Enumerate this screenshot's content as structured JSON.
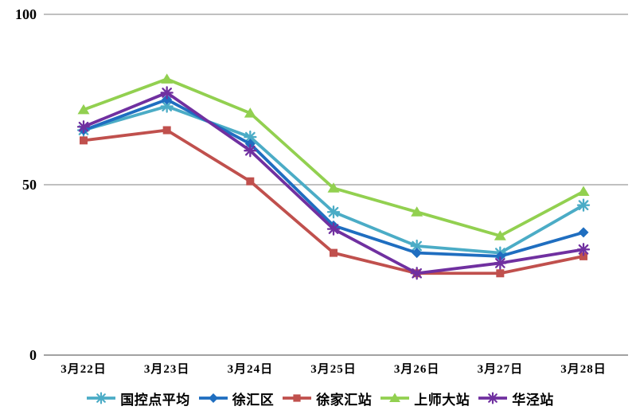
{
  "chart_data": {
    "type": "line",
    "title": "",
    "xlabel": "",
    "ylabel": "",
    "categories": [
      "3月22日",
      "3月23日",
      "3月24日",
      "3月25日",
      "3月26日",
      "3月27日",
      "3月28日"
    ],
    "series": [
      {
        "name": "国控点平均",
        "color": "#4BACC6",
        "marker": "star",
        "values": [
          66,
          73,
          64,
          42,
          32,
          30,
          44
        ]
      },
      {
        "name": "徐汇区",
        "color": "#1F6EC0",
        "marker": "diamond",
        "values": [
          66,
          75,
          62,
          38,
          30,
          29,
          36
        ]
      },
      {
        "name": "徐家汇站",
        "color": "#C0504D",
        "marker": "square",
        "values": [
          63,
          66,
          51,
          30,
          24,
          24,
          29
        ]
      },
      {
        "name": "上师大站",
        "color": "#92D050",
        "marker": "triangle",
        "values": [
          72,
          81,
          71,
          49,
          42,
          35,
          48
        ]
      },
      {
        "name": "华泾站",
        "color": "#7030A0",
        "marker": "star",
        "values": [
          67,
          77,
          60,
          37,
          24,
          27,
          31
        ]
      }
    ],
    "ylim": [
      0,
      100
    ],
    "yticks": [
      0,
      50,
      100
    ],
    "ytick_labels": [
      "0",
      "50",
      "100"
    ],
    "grid": true,
    "legend_position": "bottom"
  },
  "style": {
    "background": "#FFFFFF",
    "gridline_color": "#9A9A9A",
    "axis_color": "#6B6B6B",
    "text_color": "#000000",
    "line_width": 3.8
  }
}
